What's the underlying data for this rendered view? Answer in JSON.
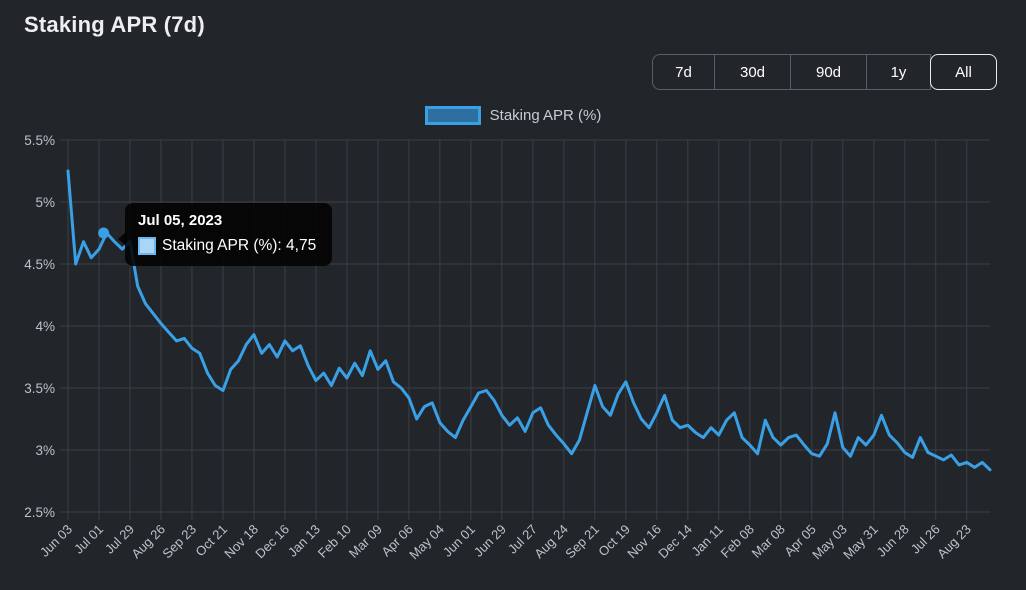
{
  "header": {
    "title": "Staking APR (7d)"
  },
  "range_selector": {
    "options": [
      {
        "label": "7d",
        "active": false
      },
      {
        "label": "30d",
        "active": false
      },
      {
        "label": "90d",
        "active": false
      },
      {
        "label": "1y",
        "active": false
      },
      {
        "label": "All",
        "active": true
      }
    ]
  },
  "legend": {
    "label": "Staking APR (%)"
  },
  "tooltip": {
    "date": "Jul 05, 2023",
    "line": "Staking APR (%): 4,75",
    "value": 4.75,
    "x_index": 4.6
  },
  "colors": {
    "background": "#22262b",
    "line": "#3aa0e6",
    "grid": "#3c4046",
    "legend_swatch_fill": "#2d6f9e",
    "legend_swatch_border": "#3aa0e6",
    "tooltip_background": "#020202",
    "axis_label": "#bcc2c8"
  },
  "chart_data": {
    "type": "line",
    "title": "Staking APR (7d)",
    "ylabel": "Staking APR (%)",
    "xlabel": "",
    "ylim": [
      2.5,
      5.5
    ],
    "grid": true,
    "legend_position": "top",
    "y_tick_values": [
      5.5,
      5.0,
      4.5,
      4.0,
      3.5,
      3.0,
      2.5
    ],
    "y_tick_labels": [
      "5.5%",
      "5%",
      "4.5%",
      "4%",
      "3.5%",
      "3%",
      "2.5%"
    ],
    "x_tick_labels": [
      "Jun 03",
      "Jul 01",
      "Jul 29",
      "Aug 26",
      "Sep 23",
      "Oct 21",
      "Nov 18",
      "Dec 16",
      "Jan 13",
      "Feb 10",
      "Mar 09",
      "Apr 06",
      "May 04",
      "Jun 01",
      "Jun 29",
      "Jul 27",
      "Aug 24",
      "Sep 21",
      "Oct 19",
      "Nov 16",
      "Dec 14",
      "Jan 11",
      "Feb 08",
      "Mar 08",
      "Apr 05",
      "May 03",
      "May 31",
      "Jun 28",
      "Jul 26",
      "Aug 23"
    ],
    "x_tick_every": 4,
    "x_unit": "weekly points starting Jun 03, 2023",
    "series": [
      {
        "name": "Staking APR (%)",
        "color": "#3aa0e6",
        "values": [
          5.25,
          4.5,
          4.68,
          4.55,
          4.62,
          4.75,
          4.68,
          4.62,
          4.68,
          4.32,
          4.18,
          4.1,
          4.02,
          3.95,
          3.88,
          3.9,
          3.82,
          3.78,
          3.62,
          3.52,
          3.48,
          3.65,
          3.72,
          3.85,
          3.93,
          3.78,
          3.85,
          3.75,
          3.88,
          3.8,
          3.84,
          3.68,
          3.56,
          3.62,
          3.52,
          3.66,
          3.58,
          3.7,
          3.6,
          3.8,
          3.65,
          3.72,
          3.55,
          3.5,
          3.42,
          3.25,
          3.35,
          3.38,
          3.22,
          3.15,
          3.1,
          3.24,
          3.35,
          3.46,
          3.48,
          3.4,
          3.28,
          3.2,
          3.26,
          3.15,
          3.3,
          3.34,
          3.2,
          3.12,
          3.05,
          2.97,
          3.08,
          3.3,
          3.52,
          3.35,
          3.28,
          3.45,
          3.55,
          3.38,
          3.25,
          3.18,
          3.3,
          3.44,
          3.24,
          3.18,
          3.2,
          3.14,
          3.1,
          3.18,
          3.12,
          3.24,
          3.3,
          3.1,
          3.04,
          2.97,
          3.24,
          3.1,
          3.04,
          3.1,
          3.12,
          3.04,
          2.97,
          2.95,
          3.05,
          3.3,
          3.02,
          2.95,
          3.1,
          3.04,
          3.12,
          3.28,
          3.12,
          3.06,
          2.98,
          2.94,
          3.1,
          2.98,
          2.95,
          2.92,
          2.96,
          2.88,
          2.9,
          2.86,
          2.9,
          2.84
        ]
      }
    ]
  }
}
